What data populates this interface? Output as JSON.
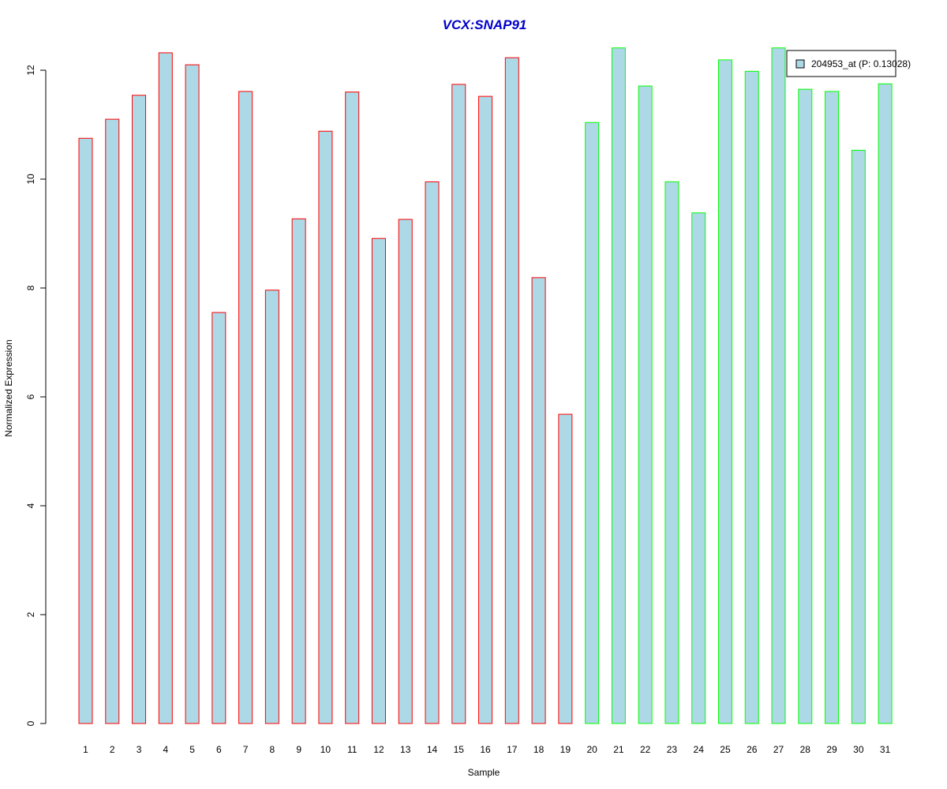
{
  "chart_data": {
    "type": "bar",
    "title": "VCX:SNAP91",
    "xlabel": "Sample",
    "ylabel": "Normalized Expression",
    "ylim": [
      0,
      12.4
    ],
    "yticks": [
      0,
      2,
      4,
      6,
      8,
      10,
      12
    ],
    "grid": false,
    "legend_position": "top-right",
    "categories": [
      "1",
      "2",
      "3",
      "4",
      "5",
      "6",
      "7",
      "8",
      "9",
      "10",
      "11",
      "12",
      "13",
      "14",
      "15",
      "16",
      "17",
      "18",
      "19",
      "20",
      "21",
      "22",
      "23",
      "24",
      "25",
      "26",
      "27",
      "28",
      "29",
      "30",
      "31"
    ],
    "series": [
      {
        "name": "204953_at (P: 0.13028)",
        "fill_color": "#add8e6",
        "values": [
          10.75,
          11.1,
          11.54,
          12.32,
          12.1,
          7.55,
          11.61,
          7.96,
          9.27,
          10.88,
          11.6,
          8.91,
          9.26,
          9.95,
          11.74,
          11.52,
          12.23,
          8.19,
          5.68,
          11.04,
          12.41,
          11.71,
          9.95,
          9.38,
          12.19,
          11.98,
          12.41,
          11.65,
          11.61,
          10.53,
          11.75
        ]
      }
    ],
    "group_colors": {
      "group_1": "#ff0000",
      "group_2": "#00ff00"
    },
    "groups": [
      1,
      1,
      1,
      1,
      1,
      1,
      1,
      1,
      1,
      1,
      1,
      1,
      1,
      1,
      1,
      1,
      1,
      1,
      1,
      2,
      2,
      2,
      2,
      2,
      2,
      2,
      2,
      2,
      2,
      2,
      2
    ],
    "title_color": "#0000cc"
  }
}
